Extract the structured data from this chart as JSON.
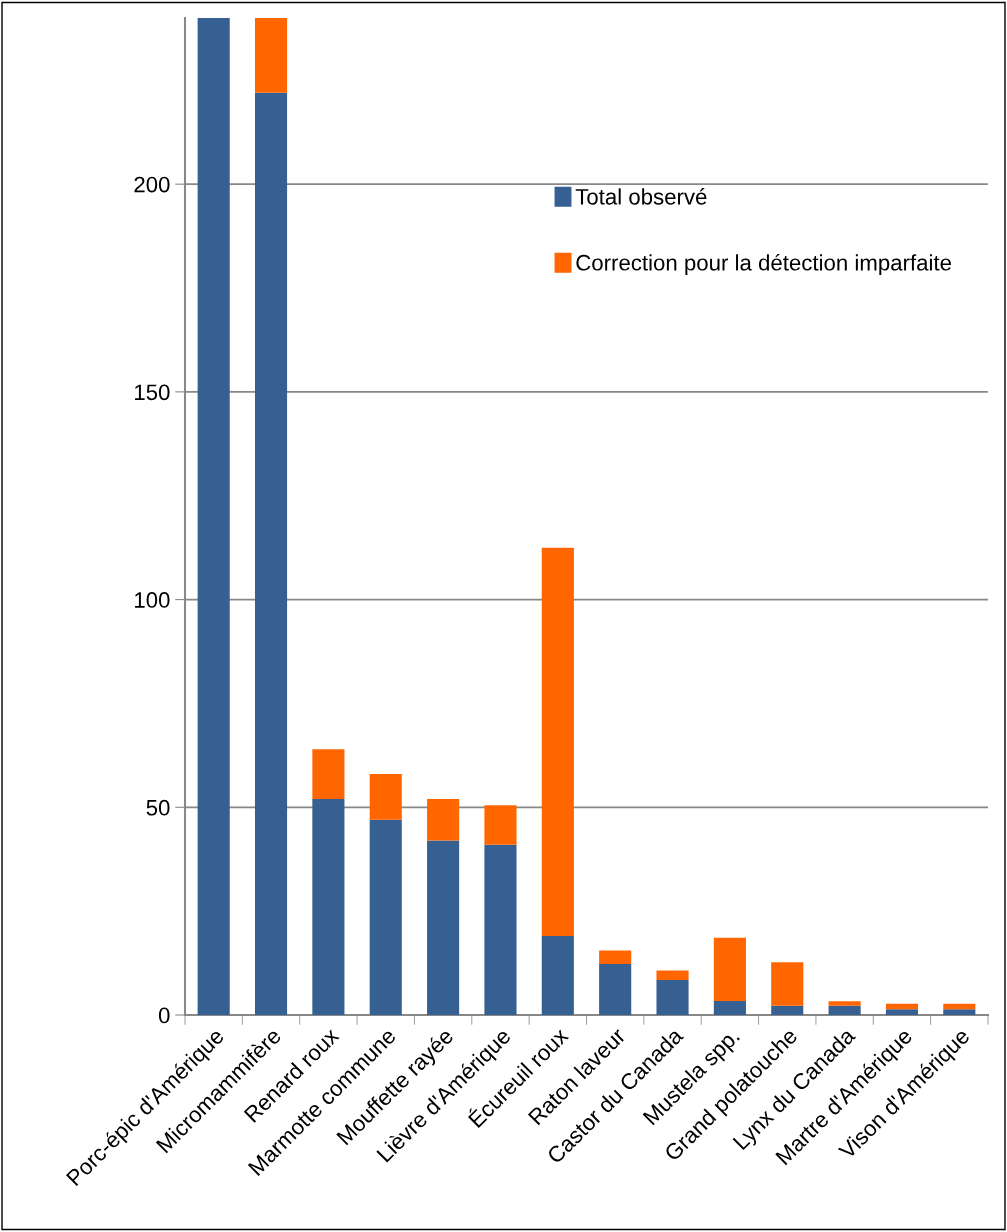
{
  "chart_data": {
    "type": "bar",
    "stacked": true,
    "categories": [
      "Porc-épic d'Amérique",
      "Micromammifère",
      "Renard roux",
      "Marmotte commune",
      "Mouffette rayée",
      "Lièvre d'Amérique",
      "Écureuil roux",
      "Raton laveur",
      "Castor du Canada",
      "Mustela spp.",
      "Grand polatouche",
      "Lynx du Canada",
      "Martre d'Amérique",
      "Vison d'Amérique"
    ],
    "series": [
      {
        "name": "Total observé",
        "color": "#366092",
        "values": [
          240,
          222,
          52,
          47,
          42,
          41,
          19,
          12.3,
          8.4,
          3.4,
          2.2,
          2.2,
          1.4,
          1.4
        ]
      },
      {
        "name": "Correction pour la détection imparfaite",
        "color": "#ff6600",
        "values": [
          null,
          18,
          12,
          11,
          10,
          9.5,
          93.5,
          3.2,
          2.3,
          15.2,
          10.5,
          1.1,
          1.3,
          1.3
        ]
      }
    ],
    "ylim": [
      0,
      240
    ],
    "yticks": [
      0,
      50,
      100,
      150,
      200
    ],
    "grid": "y",
    "legend": "top right"
  }
}
